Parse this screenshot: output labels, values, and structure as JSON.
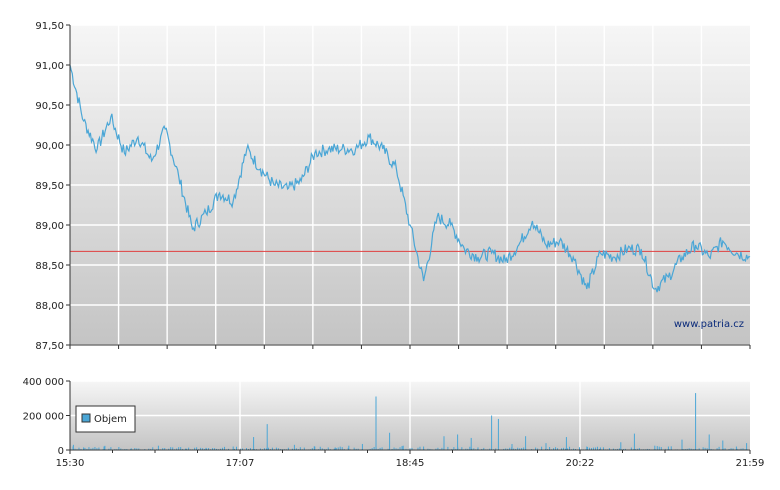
{
  "chart_data": [
    {
      "type": "line",
      "title": "",
      "xlabel": "",
      "ylabel": "",
      "ylim": [
        87.5,
        91.5
      ],
      "yticks": [
        "91,50",
        "91,00",
        "90,50",
        "90,00",
        "89,50",
        "89,00",
        "88,50",
        "88,00",
        "87,50"
      ],
      "ytick_values": [
        91.5,
        91.0,
        90.5,
        90.0,
        89.5,
        89.0,
        88.5,
        88.0,
        87.5
      ],
      "reference_line": 88.67,
      "reference_color": "#e04040",
      "line_color": "#4aa6d6",
      "grid": true,
      "watermark": "www.patria.cz",
      "series": [
        {
          "x": [
            0,
            0.02,
            0.04,
            0.06,
            0.08,
            0.1,
            0.12,
            0.14,
            0.16,
            0.18,
            0.2,
            0.22,
            0.24,
            0.26,
            0.28,
            0.3,
            0.32,
            0.34,
            0.36,
            0.38,
            0.4,
            0.42,
            0.44,
            0.46,
            0.48,
            0.5,
            0.52,
            0.54,
            0.56,
            0.58,
            0.6,
            0.62,
            0.64,
            0.66,
            0.68,
            0.7,
            0.72,
            0.74,
            0.76,
            0.78,
            0.8,
            0.82,
            0.84,
            0.86,
            0.88,
            0.9,
            0.92,
            0.94,
            0.96,
            0.98,
            1.0
          ],
          "values": [
            91.0,
            90.3,
            89.95,
            90.35,
            89.9,
            90.1,
            89.8,
            90.2,
            89.6,
            88.95,
            89.15,
            89.4,
            89.3,
            89.95,
            89.7,
            89.5,
            89.45,
            89.55,
            89.9,
            89.95,
            89.95,
            89.95,
            90.1,
            89.95,
            89.7,
            89.0,
            88.3,
            89.1,
            89.0,
            88.7,
            88.6,
            88.65,
            88.55,
            88.75,
            89.05,
            88.75,
            88.8,
            88.6,
            88.2,
            88.65,
            88.6,
            88.7,
            88.7,
            88.2,
            88.35,
            88.6,
            88.75,
            88.6,
            88.8,
            88.65,
            88.6
          ]
        }
      ]
    },
    {
      "type": "bar",
      "title": "",
      "xlabel": "",
      "ylabel": "",
      "ylim": [
        0,
        400000
      ],
      "yticks": [
        "400 000",
        "200 000",
        "0"
      ],
      "ytick_values": [
        400000,
        200000,
        0
      ],
      "bar_color": "#4aa6d6",
      "legend": "Objem",
      "legend_position": "top-left",
      "xticks": [
        "15:30",
        "17:07",
        "18:45",
        "20:22",
        "21:59"
      ],
      "series": [
        {
          "name": "Objem",
          "x": [
            0.005,
            0.02,
            0.05,
            0.09,
            0.13,
            0.17,
            0.2,
            0.24,
            0.27,
            0.29,
            0.33,
            0.36,
            0.39,
            0.41,
            0.43,
            0.45,
            0.47,
            0.49,
            0.52,
            0.55,
            0.57,
            0.59,
            0.6,
            0.62,
            0.63,
            0.65,
            0.67,
            0.7,
            0.73,
            0.76,
            0.78,
            0.81,
            0.83,
            0.86,
            0.88,
            0.9,
            0.92,
            0.94,
            0.96,
            0.98,
            0.995
          ],
          "values": [
            30000,
            15000,
            20000,
            10000,
            25000,
            8000,
            12000,
            20000,
            75000,
            150000,
            30000,
            20000,
            15000,
            25000,
            35000,
            310000,
            100000,
            25000,
            20000,
            80000,
            90000,
            70000,
            15000,
            200000,
            180000,
            35000,
            80000,
            40000,
            75000,
            20000,
            15000,
            45000,
            95000,
            25000,
            20000,
            60000,
            330000,
            90000,
            55000,
            20000,
            40000
          ]
        }
      ]
    }
  ]
}
